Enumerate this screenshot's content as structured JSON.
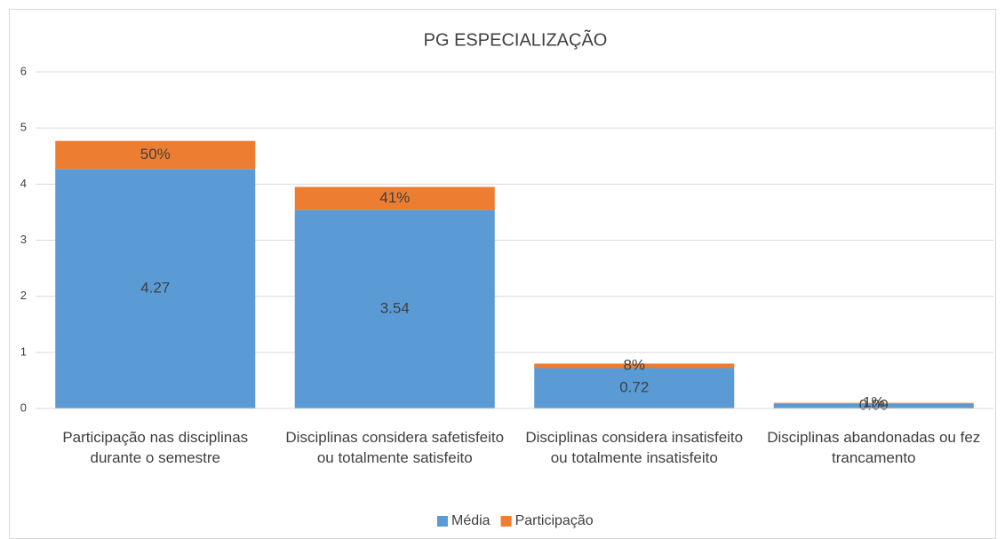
{
  "chart_data": {
    "type": "stacked_bar",
    "title": "PG ESPECIALIZAÇÃO",
    "categories": [
      "Participação nas disciplinas durante o semestre",
      "Disciplinas considera safetisfeito  ou totalmente satisfeito",
      "Disciplinas considera insatisfeito ou totalmente insatisfeito",
      "Disciplinas abandonadas ou fez trancamento"
    ],
    "series": [
      {
        "name": "Média",
        "color": "#5b9bd5",
        "values": [
          4.27,
          3.54,
          0.72,
          0.09
        ]
      },
      {
        "name": "Participação",
        "color": "#ed7d31",
        "values": [
          0.5,
          0.41,
          0.08,
          0.01
        ],
        "value_labels": [
          "50%",
          "41%",
          "8%",
          "1%"
        ]
      }
    ],
    "ylim": [
      0,
      6
    ],
    "yticks": [
      0,
      1,
      2,
      3,
      4,
      5,
      6
    ],
    "grid": true,
    "legend": "bottom"
  }
}
